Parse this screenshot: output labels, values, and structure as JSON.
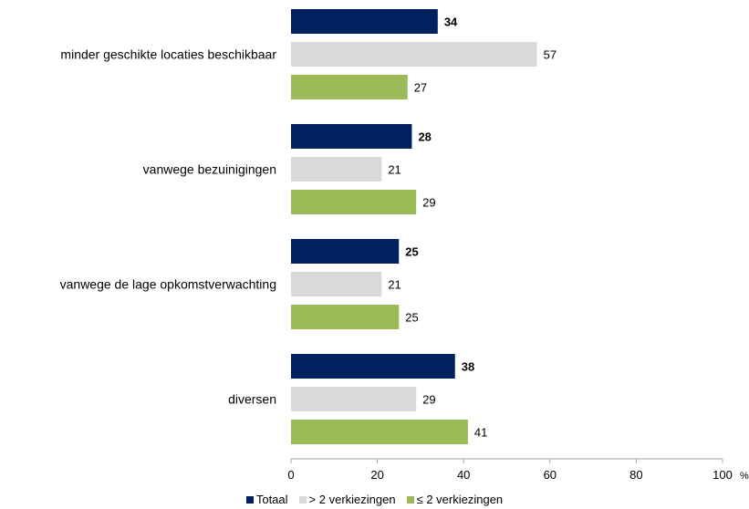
{
  "chart_data": {
    "type": "bar",
    "orientation": "horizontal",
    "categories": [
      "minder geschikte locaties beschikbaar",
      "vanwege bezuinigingen",
      "vanwege de lage opkomstverwachting",
      "diversen"
    ],
    "series": [
      {
        "name": "Totaal",
        "color": "#002060",
        "bold_labels": true,
        "values": [
          34,
          28,
          25,
          38
        ]
      },
      {
        "name": "> 2 verkiezingen",
        "color": "#d9d9d9",
        "bold_labels": false,
        "values": [
          57,
          21,
          21,
          29
        ]
      },
      {
        "name": "≤ 2 verkiezingen",
        "color": "#9bbb59",
        "bold_labels": false,
        "values": [
          27,
          29,
          25,
          41
        ]
      }
    ],
    "xlim": [
      0,
      100
    ],
    "xticks": [
      "0",
      "20",
      "40",
      "60",
      "80",
      "100"
    ],
    "unit": "%",
    "grid": false,
    "legend_position": "bottom"
  }
}
